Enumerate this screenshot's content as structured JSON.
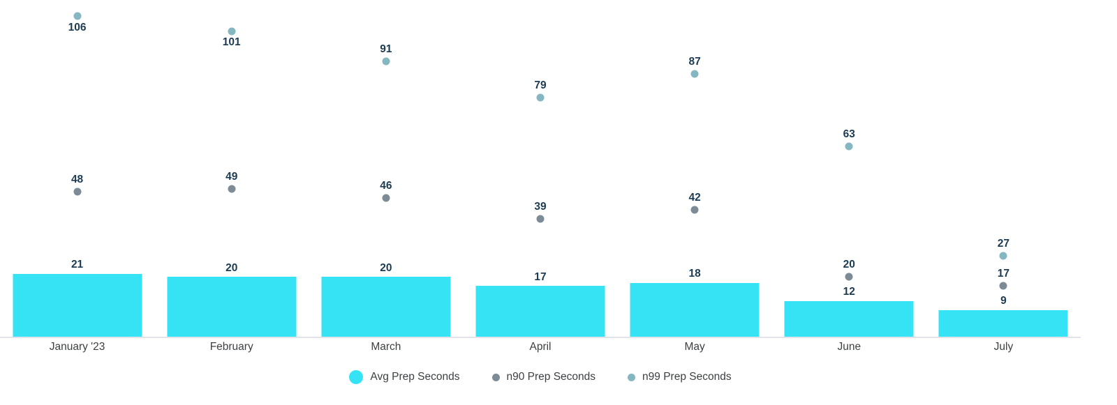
{
  "chart_data": {
    "type": "bar",
    "title": "",
    "xlabel": "",
    "ylabel": "",
    "categories": [
      "January '23",
      "February",
      "March",
      "April",
      "May",
      "June",
      "July"
    ],
    "series": [
      {
        "name": "Avg Prep Seconds",
        "type": "bar",
        "color": "#35e3f5",
        "values": [
          21,
          20,
          20,
          17,
          18,
          12,
          9
        ]
      },
      {
        "name": "n90 Prep Seconds",
        "type": "scatter",
        "color": "#7c8b96",
        "values": [
          48,
          49,
          46,
          39,
          42,
          20,
          17
        ]
      },
      {
        "name": "n99 Prep Seconds",
        "type": "scatter",
        "color": "#84b7c1",
        "values": [
          106,
          101,
          91,
          79,
          87,
          63,
          27
        ]
      }
    ],
    "ylim": [
      0,
      111.3
    ],
    "grid": false,
    "y_axis_visible": false,
    "legend_position": "bottom-center",
    "data_label_color": "#1c3b52",
    "axis_label_color": "#3c4043",
    "axis_line_color": "#e2e3e8",
    "legend": [
      {
        "label": "Avg Prep Seconds",
        "marker_color": "#35e3f5",
        "marker_size": 20
      },
      {
        "label": "n90 Prep Seconds",
        "marker_color": "#7c8b96",
        "marker_size": 11
      },
      {
        "label": "n99 Prep Seconds",
        "marker_color": "#84b7c1",
        "marker_size": 11
      }
    ]
  }
}
